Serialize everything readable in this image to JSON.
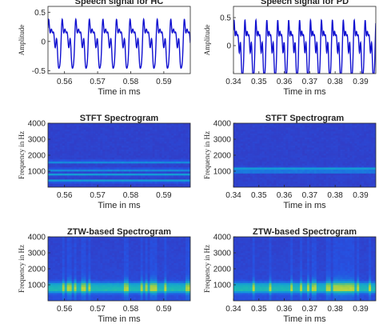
{
  "colors": {
    "signal": "#1010d0",
    "axis": "#262626"
  },
  "chart_data": [
    {
      "id": "hc-signal",
      "type": "line",
      "title": "Speech signal for HC",
      "xlabel": "Time in ms",
      "ylabel": "Amplitude",
      "xlim": [
        0.555,
        0.598
      ],
      "ylim": [
        -0.55,
        0.6
      ],
      "xticks": [
        0.56,
        0.57,
        0.58,
        0.59
      ],
      "xtick_labels": [
        "0.56",
        "0.57",
        "0.58",
        "0.59"
      ],
      "yticks": [
        -0.5,
        0,
        0.5
      ],
      "ytick_labels": [
        "-0.5",
        "0",
        "0.5"
      ],
      "period": 0.0041,
      "amplitude": 0.5
    },
    {
      "id": "pd-signal",
      "type": "line",
      "title": "Speech signal for PD",
      "xlabel": "Time in ms",
      "ylabel": "Amplitude",
      "xlim": [
        0.34,
        0.396
      ],
      "ylim": [
        -0.5,
        0.7
      ],
      "xticks": [
        0.34,
        0.35,
        0.36,
        0.37,
        0.38,
        0.39
      ],
      "xtick_labels": [
        "0.34",
        "0.35",
        "0.36",
        "0.37",
        "0.38",
        "0.39"
      ],
      "yticks": [
        0,
        0.5
      ],
      "ytick_labels": [
        "0",
        "0.5"
      ],
      "period": 0.0043,
      "amplitude": 0.6
    },
    {
      "id": "hc-stft",
      "type": "heatmap",
      "title": "STFT Spectrogram",
      "xlabel": "Time in ms",
      "ylabel": "Frequency in Hz",
      "xlim": [
        0.555,
        0.598
      ],
      "ylim": [
        0,
        4000
      ],
      "xticks": [
        0.56,
        0.57,
        0.58,
        0.59
      ],
      "xtick_labels": [
        "0.56",
        "0.57",
        "0.58",
        "0.59"
      ],
      "yticks": [
        1000,
        2000,
        3000,
        4000
      ],
      "ytick_labels": [
        "1000",
        "2000",
        "3000",
        "4000"
      ],
      "kind": "stft",
      "bands": [
        400,
        800,
        1100,
        1600
      ],
      "vertical_streaks": false
    },
    {
      "id": "pd-stft",
      "type": "heatmap",
      "title": "STFT Spectrogram",
      "xlabel": "Time in ms",
      "ylabel": "Frequency in Hz",
      "xlim": [
        0.34,
        0.396
      ],
      "ylim": [
        0,
        4000
      ],
      "xticks": [
        0.34,
        0.35,
        0.36,
        0.37,
        0.38,
        0.39
      ],
      "xtick_labels": [
        "0.34",
        "0.35",
        "0.36",
        "0.37",
        "0.38",
        "0.39"
      ],
      "yticks": [
        1000,
        2000,
        3000,
        4000
      ],
      "ytick_labels": [
        "1000",
        "2000",
        "3000",
        "4000"
      ],
      "kind": "stft",
      "bands": [
        1000,
        1200
      ],
      "vertical_streaks": false
    },
    {
      "id": "hc-ztw",
      "type": "heatmap",
      "title": "ZTW-based Spectrogram",
      "xlabel": "Time in ms",
      "ylabel": "Frequency in Hz",
      "xlim": [
        0.555,
        0.598
      ],
      "ylim": [
        0,
        4000
      ],
      "xticks": [
        0.56,
        0.57,
        0.58,
        0.59
      ],
      "xtick_labels": [
        "0.56",
        "0.57",
        "0.58",
        "0.59"
      ],
      "yticks": [
        1000,
        2000,
        3000,
        4000
      ],
      "ytick_labels": [
        "1000",
        "2000",
        "3000",
        "4000"
      ],
      "kind": "ztw",
      "bands": [
        700,
        1000
      ],
      "vertical_streaks": true
    },
    {
      "id": "pd-ztw",
      "type": "heatmap",
      "title": "ZTW-based Spectrogram",
      "xlabel": "Time in ms",
      "ylabel": "Frequency in Hz",
      "xlim": [
        0.34,
        0.396
      ],
      "ylim": [
        0,
        4000
      ],
      "xticks": [
        0.34,
        0.35,
        0.36,
        0.37,
        0.38,
        0.39
      ],
      "xtick_labels": [
        "0.34",
        "0.35",
        "0.36",
        "0.37",
        "0.38",
        "0.39"
      ],
      "yticks": [
        1000,
        2000,
        3000,
        4000
      ],
      "ytick_labels": [
        "1000",
        "2000",
        "3000",
        "4000"
      ],
      "kind": "ztw",
      "bands": [
        700,
        1000
      ],
      "vertical_streaks": true
    }
  ]
}
